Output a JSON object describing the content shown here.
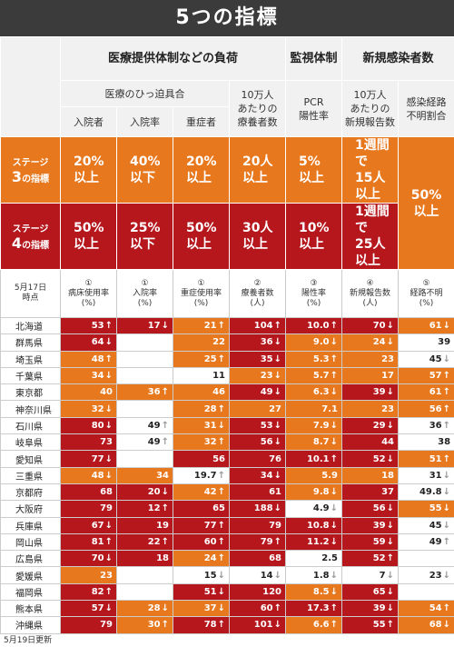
{
  "title": "5つの指標",
  "groups": [
    "医療提供体制などの負荷",
    "監視体制",
    "新規感染者数"
  ],
  "subgroups": [
    "医療のひっ迫具合",
    "10万人\nあたりの\n療養者数",
    "PCR\n陽性率",
    "10万人\nあたりの\n新規報告数",
    "感染経路\n不明割合"
  ],
  "indicators": [
    "入院者",
    "入院率",
    "重症者"
  ],
  "level_colors": {
    "3": "#e8781e",
    "4": "#b5171d"
  },
  "stages": [
    {
      "prefix": "ステージ",
      "number": "3",
      "suffix": "の指標",
      "level": 3,
      "criteria": [
        "20%\n以上",
        "40%\n以下",
        "20%\n以上",
        "20人\n以上",
        "5%\n以上",
        "1週間で\n15人以上",
        "50%\n以上"
      ]
    },
    {
      "prefix": "ステージ",
      "number": "4",
      "suffix": "の指標",
      "level": 4,
      "criteria": [
        "50%\n以上",
        "25%\n以下",
        "50%\n以上",
        "30人\n以上",
        "10%\n以上",
        "1週間で\n25人以上"
      ]
    }
  ],
  "table": {
    "date": "5月17日\n時点",
    "metrics": [
      "①\n病床使用率\n(%)",
      "①\n入院率\n(%)",
      "①\n重症使用率\n(%)",
      "②\n療養者数\n(人)",
      "③\n陽性率\n(%)",
      "④\n新規報告数\n(人)",
      "⑤\n経路不明\n(%)"
    ],
    "rows": [
      {
        "pref": "北海道",
        "cells": [
          {
            "value": "53",
            "trend": "↑",
            "level": 4
          },
          {
            "value": "17",
            "trend": "↓",
            "level": 4
          },
          {
            "value": "21",
            "trend": "↑",
            "level": 3
          },
          {
            "value": "104",
            "trend": "↑",
            "level": 4
          },
          {
            "value": "10.0",
            "trend": "↑",
            "level": 4
          },
          {
            "value": "70",
            "trend": "↓",
            "level": 4
          },
          {
            "value": "61",
            "trend": "↓",
            "level": 3
          }
        ]
      },
      {
        "pref": "群馬県",
        "cells": [
          {
            "value": "64",
            "trend": "↓",
            "level": 4
          },
          {
            "value": null
          },
          {
            "value": "22",
            "level": 3
          },
          {
            "value": "36",
            "trend": "↓",
            "level": 4
          },
          {
            "value": "9.0",
            "trend": "↓",
            "level": 3
          },
          {
            "value": "24",
            "trend": "↓",
            "level": 3
          },
          {
            "value": "39"
          }
        ]
      },
      {
        "pref": "埼玉県",
        "cells": [
          {
            "value": "48",
            "trend": "↑",
            "level": 3
          },
          {
            "value": null
          },
          {
            "value": "25",
            "trend": "↑",
            "level": 3
          },
          {
            "value": "35",
            "trend": "↓",
            "level": 4
          },
          {
            "value": "5.3",
            "trend": "↑",
            "level": 3
          },
          {
            "value": "23",
            "level": 3
          },
          {
            "value": "45",
            "trend": "↓"
          }
        ]
      },
      {
        "pref": "千葉県",
        "cells": [
          {
            "value": "34",
            "trend": "↓",
            "level": 3
          },
          {
            "value": null
          },
          {
            "value": "11"
          },
          {
            "value": "23",
            "trend": "↓",
            "level": 3
          },
          {
            "value": "5.7",
            "trend": "↑",
            "level": 3
          },
          {
            "value": "17",
            "level": 3
          },
          {
            "value": "57",
            "trend": "↑",
            "level": 3
          }
        ]
      },
      {
        "pref": "東京都",
        "cells": [
          {
            "value": "40",
            "level": 3
          },
          {
            "value": "36",
            "trend": "↑",
            "level": 3
          },
          {
            "value": "46",
            "level": 3
          },
          {
            "value": "49",
            "trend": "↓",
            "level": 4
          },
          {
            "value": "6.3",
            "trend": "↓",
            "level": 3
          },
          {
            "value": "39",
            "trend": "↓",
            "level": 4
          },
          {
            "value": "61",
            "trend": "↑",
            "level": 3
          }
        ]
      },
      {
        "pref": "神奈川県",
        "cells": [
          {
            "value": "32",
            "trend": "↓",
            "level": 3
          },
          {
            "value": null
          },
          {
            "value": "28",
            "trend": "↑",
            "level": 3
          },
          {
            "value": "27",
            "level": 3
          },
          {
            "value": "7.1",
            "level": 3
          },
          {
            "value": "23",
            "level": 3
          },
          {
            "value": "56",
            "trend": "↑",
            "level": 3
          }
        ]
      },
      {
        "pref": "石川県",
        "cells": [
          {
            "value": "80",
            "trend": "↓",
            "level": 4
          },
          {
            "value": "49",
            "trend": "↑"
          },
          {
            "value": "31",
            "trend": "↓",
            "level": 3
          },
          {
            "value": "53",
            "trend": "↓",
            "level": 4
          },
          {
            "value": "7.9",
            "trend": "↓",
            "level": 3
          },
          {
            "value": "29",
            "trend": "↓",
            "level": 4
          },
          {
            "value": "36",
            "trend": "↑"
          }
        ]
      },
      {
        "pref": "岐阜県",
        "cells": [
          {
            "value": "73",
            "level": 4
          },
          {
            "value": "49",
            "trend": "↑"
          },
          {
            "value": "32",
            "trend": "↑",
            "level": 3
          },
          {
            "value": "56",
            "trend": "↓",
            "level": 4
          },
          {
            "value": "8.7",
            "trend": "↓",
            "level": 3
          },
          {
            "value": "44",
            "level": 4
          },
          {
            "value": "38"
          }
        ]
      },
      {
        "pref": "愛知県",
        "cells": [
          {
            "value": "77",
            "trend": "↓",
            "level": 4
          },
          {
            "value": null
          },
          {
            "value": "56",
            "level": 4
          },
          {
            "value": "76",
            "level": 4
          },
          {
            "value": "10.1",
            "trend": "↑",
            "level": 4
          },
          {
            "value": "52",
            "trend": "↓",
            "level": 4
          },
          {
            "value": "51",
            "trend": "↑",
            "level": 3
          }
        ]
      },
      {
        "pref": "三重県",
        "cells": [
          {
            "value": "48",
            "trend": "↓",
            "level": 3
          },
          {
            "value": "34",
            "level": 3
          },
          {
            "value": "19.7",
            "trend": "↑"
          },
          {
            "value": "34",
            "trend": "↓",
            "level": 4
          },
          {
            "value": "5.9",
            "level": 3
          },
          {
            "value": "18",
            "level": 3
          },
          {
            "value": "31",
            "trend": "↓"
          }
        ]
      },
      {
        "pref": "京都府",
        "cells": [
          {
            "value": "68",
            "level": 4
          },
          {
            "value": "20",
            "trend": "↓",
            "level": 4
          },
          {
            "value": "42",
            "trend": "↑",
            "level": 3
          },
          {
            "value": "61",
            "level": 4
          },
          {
            "value": "9.8",
            "trend": "↓",
            "level": 3
          },
          {
            "value": "37",
            "level": 4
          },
          {
            "value": "49.8",
            "trend": "↓"
          }
        ]
      },
      {
        "pref": "大阪府",
        "cells": [
          {
            "value": "79",
            "level": 4
          },
          {
            "value": "12",
            "trend": "↑",
            "level": 4
          },
          {
            "value": "65",
            "level": 4
          },
          {
            "value": "188",
            "trend": "↓",
            "level": 4
          },
          {
            "value": "4.9",
            "trend": "↓"
          },
          {
            "value": "56",
            "trend": "↓",
            "level": 4
          },
          {
            "value": "55",
            "trend": "↓",
            "level": 3
          }
        ]
      },
      {
        "pref": "兵庫県",
        "cells": [
          {
            "value": "67",
            "trend": "↓",
            "level": 4
          },
          {
            "value": "19",
            "level": 4
          },
          {
            "value": "77",
            "trend": "↑",
            "level": 4
          },
          {
            "value": "79",
            "level": 4
          },
          {
            "value": "10.8",
            "trend": "↓",
            "level": 4
          },
          {
            "value": "39",
            "trend": "↓",
            "level": 4
          },
          {
            "value": "45",
            "trend": "↓"
          }
        ]
      },
      {
        "pref": "岡山県",
        "cells": [
          {
            "value": "81",
            "trend": "↑",
            "level": 4
          },
          {
            "value": "22",
            "trend": "↑",
            "level": 4
          },
          {
            "value": "60",
            "trend": "↑",
            "level": 4
          },
          {
            "value": "79",
            "trend": "↑",
            "level": 4
          },
          {
            "value": "11.2",
            "trend": "↓",
            "level": 4
          },
          {
            "value": "59",
            "trend": "↓",
            "level": 4
          },
          {
            "value": "49",
            "trend": "↑"
          }
        ]
      },
      {
        "pref": "広島県",
        "cells": [
          {
            "value": "70",
            "trend": "↓",
            "level": 4
          },
          {
            "value": "18",
            "level": 4
          },
          {
            "value": "24",
            "trend": "↑",
            "level": 3
          },
          {
            "value": "68",
            "level": 4
          },
          {
            "value": "2.5"
          },
          {
            "value": "52",
            "trend": "↑",
            "level": 4
          },
          {
            "value": null
          }
        ]
      },
      {
        "pref": "愛媛県",
        "cells": [
          {
            "value": "23",
            "level": 3
          },
          {
            "value": null
          },
          {
            "value": "15",
            "trend": "↓"
          },
          {
            "value": "14",
            "trend": "↓"
          },
          {
            "value": "1.8",
            "trend": "↓"
          },
          {
            "value": "7",
            "trend": "↓"
          },
          {
            "value": "23",
            "trend": "↓"
          }
        ]
      },
      {
        "pref": "福岡県",
        "cells": [
          {
            "value": "82",
            "trend": "↑",
            "level": 4
          },
          {
            "value": null
          },
          {
            "value": "51",
            "trend": "↓",
            "level": 4
          },
          {
            "value": "120",
            "level": 4
          },
          {
            "value": "8.5",
            "trend": "↓",
            "level": 3
          },
          {
            "value": "65",
            "trend": "↓",
            "level": 4
          },
          {
            "value": null
          }
        ]
      },
      {
        "pref": "熊本県",
        "cells": [
          {
            "value": "57",
            "trend": "↓",
            "level": 4
          },
          {
            "value": "28",
            "trend": "↓",
            "level": 3
          },
          {
            "value": "37",
            "trend": "↓",
            "level": 3
          },
          {
            "value": "60",
            "trend": "↑",
            "level": 4
          },
          {
            "value": "17.3",
            "trend": "↑",
            "level": 4
          },
          {
            "value": "39",
            "trend": "↓",
            "level": 4
          },
          {
            "value": "54",
            "trend": "↑",
            "level": 3
          }
        ]
      },
      {
        "pref": "沖縄県",
        "cells": [
          {
            "value": "79",
            "level": 4
          },
          {
            "value": "30",
            "trend": "↑",
            "level": 3
          },
          {
            "value": "78",
            "trend": "↑",
            "level": 4
          },
          {
            "value": "101",
            "trend": "↓",
            "level": 4
          },
          {
            "value": "6.6",
            "trend": "↑",
            "level": 3
          },
          {
            "value": "55",
            "trend": "↑",
            "level": 4
          },
          {
            "value": "68",
            "trend": "↓",
            "level": 3
          }
        ]
      }
    ]
  },
  "footer": "5月19日更新"
}
